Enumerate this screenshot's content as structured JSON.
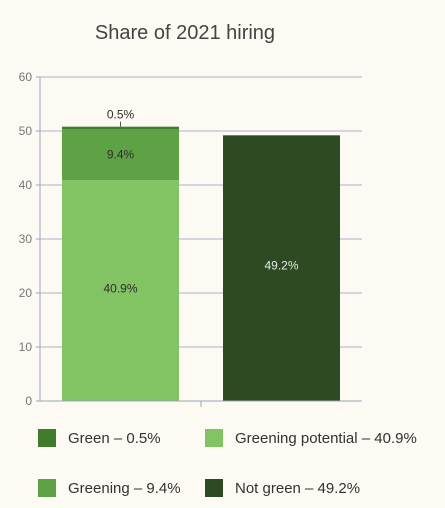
{
  "chart_data": {
    "type": "bar",
    "title": "Share of 2021 hiring",
    "xlabel": "",
    "ylabel": "",
    "ylim": [
      0,
      60
    ],
    "yticks": [
      0,
      10,
      20,
      30,
      40,
      50,
      60
    ],
    "grid": true,
    "legend_position": "bottom",
    "categories": [
      "",
      ""
    ],
    "stacks": [
      [
        {
          "name": "Greening potential",
          "value": 40.9,
          "label": "40.9%",
          "color": "#82c463",
          "label_color": "#2e2e2e"
        },
        {
          "name": "Greening",
          "value": 9.4,
          "label": "9.4%",
          "color": "#5fa246",
          "label_color": "#2e2e2e"
        },
        {
          "name": "Green",
          "value": 0.5,
          "label": "0.5%",
          "color": "#3f7c2c",
          "label_color": "#2e2e2e"
        }
      ],
      [
        {
          "name": "Not green",
          "value": 49.2,
          "label": "49.2%",
          "color": "#2d4a22",
          "label_color": "#e8e8e8"
        }
      ]
    ],
    "legend": [
      {
        "label": "Green – 0.5%",
        "color": "#3f7c2c"
      },
      {
        "label": "Greening potential – 40.9%",
        "color": "#82c463"
      },
      {
        "label": "Greening – 9.4%",
        "color": "#5fa246"
      },
      {
        "label": "Not green – 49.2%",
        "color": "#2d4a22"
      }
    ]
  }
}
